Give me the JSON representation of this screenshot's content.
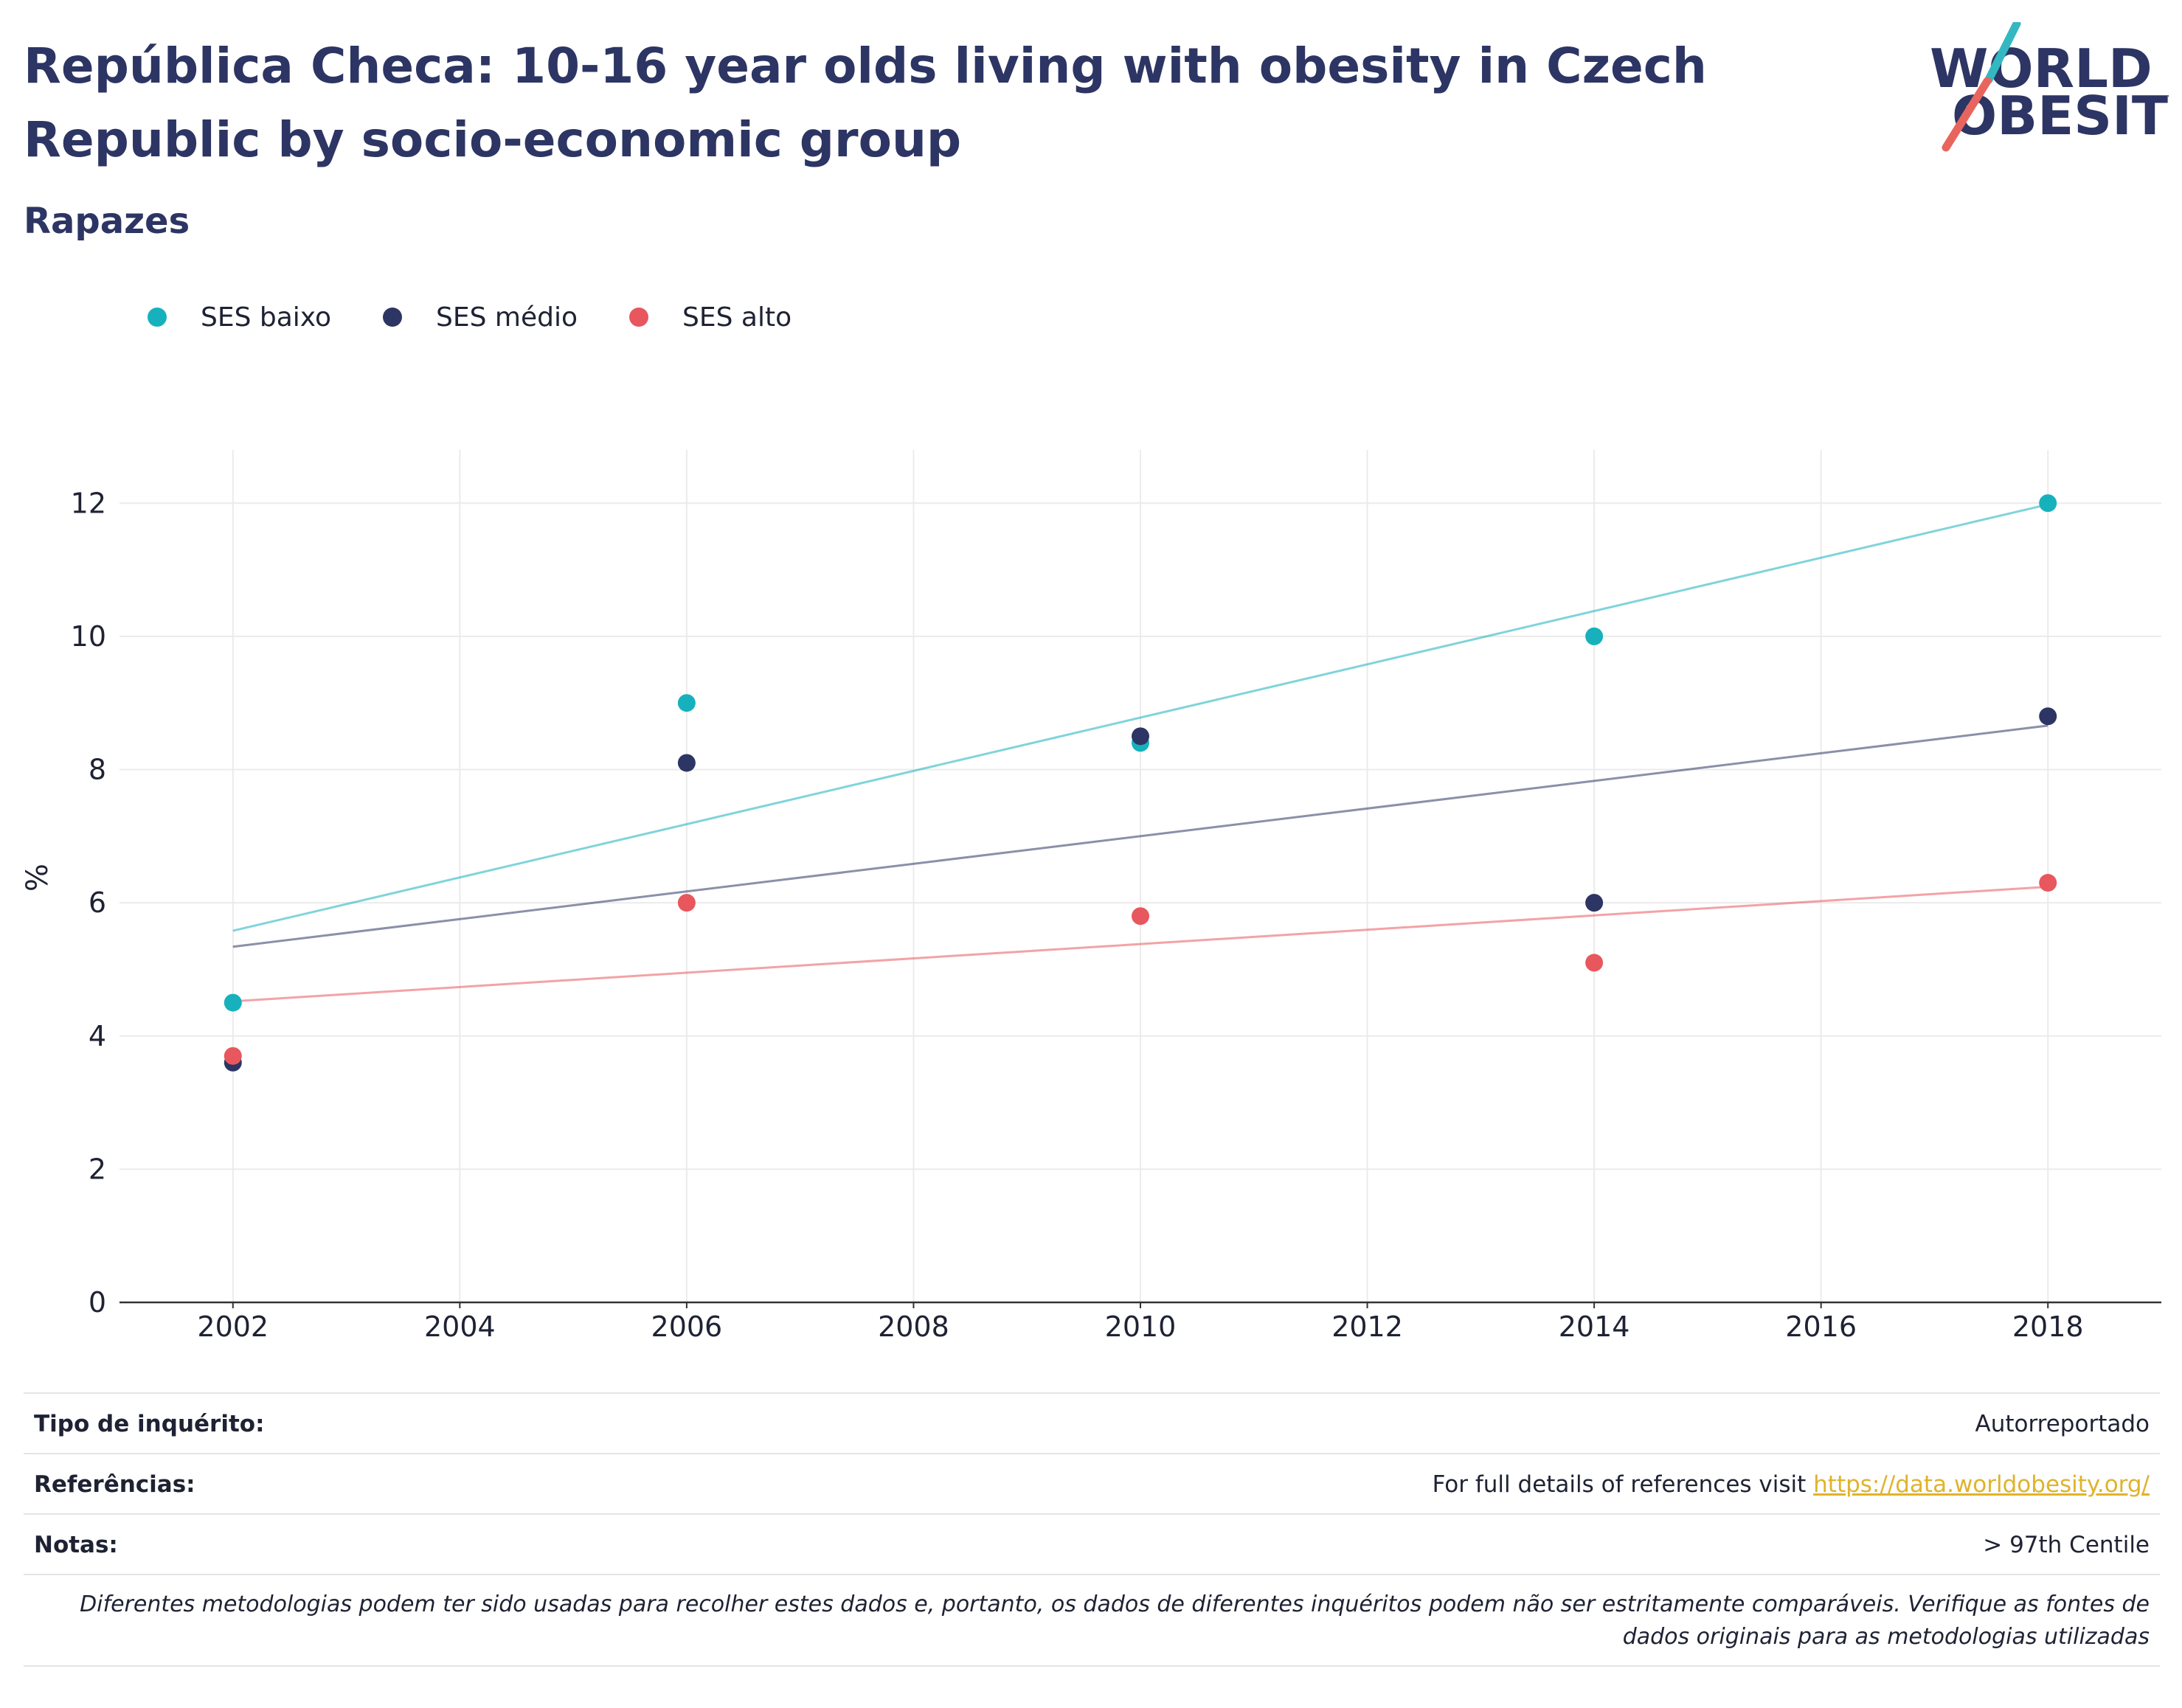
{
  "header": {
    "title": "República Checa: 10-16 year olds living with obesity in Czech Republic by socio-economic group",
    "subtitle": "Rapazes",
    "logo_line1": "WORLD",
    "logo_line2": "OBESITY"
  },
  "legend": [
    {
      "label": "SES baixo",
      "color": "#17b1bd"
    },
    {
      "label": "SES médio",
      "color": "#2c3563"
    },
    {
      "label": "SES alto",
      "color": "#e8575e"
    }
  ],
  "chart_data": {
    "type": "scatter",
    "title": "",
    "xlabel": "",
    "ylabel": "%",
    "xlim": [
      2001,
      2019
    ],
    "ylim": [
      0,
      12.8
    ],
    "x_ticks": [
      2002,
      2004,
      2006,
      2008,
      2010,
      2012,
      2014,
      2016,
      2018
    ],
    "y_ticks": [
      0,
      2,
      4,
      6,
      8,
      10,
      12
    ],
    "grid": true,
    "legend_position": "top-left",
    "trendlines": true,
    "series": [
      {
        "name": "SES baixo",
        "color": "#17b1bd",
        "points": [
          {
            "x": 2002,
            "y": 4.5
          },
          {
            "x": 2006,
            "y": 9.0
          },
          {
            "x": 2010,
            "y": 8.4
          },
          {
            "x": 2014,
            "y": 10.0
          },
          {
            "x": 2018,
            "y": 12.0
          }
        ]
      },
      {
        "name": "SES médio",
        "color": "#2c3563",
        "points": [
          {
            "x": 2002,
            "y": 3.6
          },
          {
            "x": 2006,
            "y": 8.1
          },
          {
            "x": 2010,
            "y": 8.5
          },
          {
            "x": 2014,
            "y": 6.0
          },
          {
            "x": 2018,
            "y": 8.8
          }
        ]
      },
      {
        "name": "SES alto",
        "color": "#e8575e",
        "points": [
          {
            "x": 2002,
            "y": 3.7
          },
          {
            "x": 2006,
            "y": 6.0
          },
          {
            "x": 2010,
            "y": 5.8
          },
          {
            "x": 2014,
            "y": 5.1
          },
          {
            "x": 2018,
            "y": 6.3
          }
        ]
      }
    ]
  },
  "info": {
    "survey_type_label": "Tipo de inquérito:",
    "survey_type_value": "Autorreportado",
    "references_label": "Referências:",
    "references_text": "For full details of references visit",
    "references_link": "https://data.worldobesity.org/",
    "notes_label": "Notas:",
    "notes_value": "> 97th Centile",
    "disclaimer": "Diferentes metodologias podem ter sido usadas para recolher estes dados e, portanto, os dados de diferentes inquéritos podem não ser estritamente comparáveis. Verifique as fontes de dados originais para as metodologias utilizadas"
  }
}
